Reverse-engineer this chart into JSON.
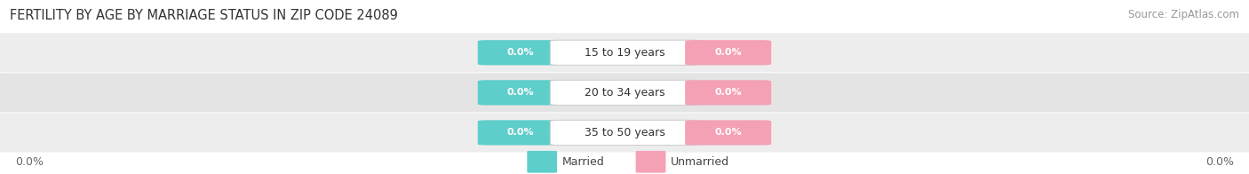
{
  "title": "FERTILITY BY AGE BY MARRIAGE STATUS IN ZIP CODE 24089",
  "source": "Source: ZipAtlas.com",
  "categories": [
    "15 to 19 years",
    "20 to 34 years",
    "35 to 50 years"
  ],
  "married_values": [
    0.0,
    0.0,
    0.0
  ],
  "unmarried_values": [
    0.0,
    0.0,
    0.0
  ],
  "married_color": "#5ececa",
  "unmarried_color": "#f4a0b5",
  "row_bg_color": "#ececec",
  "row_bg_light": "#f5f5f5",
  "background_color": "#ffffff",
  "title_fontsize": 10.5,
  "source_fontsize": 8.5,
  "value_fontsize": 8,
  "cat_fontsize": 9,
  "legend_fontsize": 9,
  "left_tick_label": "0.0%",
  "right_tick_label": "0.0%",
  "legend_married": "Married",
  "legend_unmarried": "Unmarried"
}
